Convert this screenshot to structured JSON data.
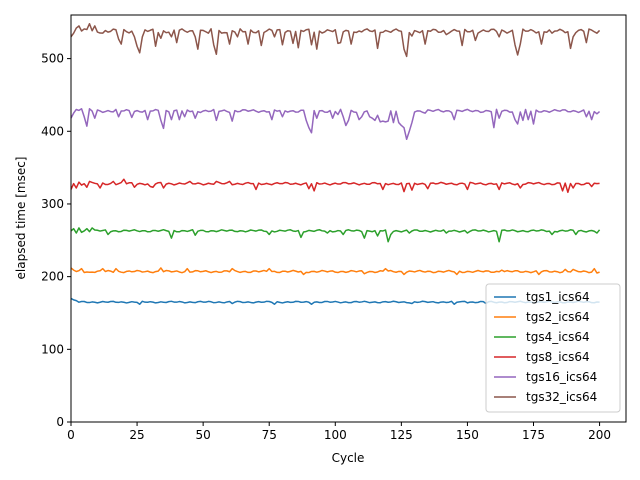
{
  "chart_data": {
    "type": "line",
    "title": "",
    "xlabel": "Cycle",
    "ylabel": "elapsed time [msec]",
    "xlim": [
      0,
      210
    ],
    "ylim": [
      0,
      560
    ],
    "xticks": [
      0,
      25,
      50,
      75,
      100,
      125,
      150,
      175,
      200
    ],
    "yticks": [
      0,
      100,
      200,
      300,
      400,
      500
    ],
    "grid": false,
    "legend_position": "lower-right",
    "x": {
      "start": 0,
      "end": 200,
      "step": 1
    },
    "series": [
      {
        "name": "tgs1_ics64",
        "color": "#1f77b4",
        "baseline": 165,
        "spread": 1.2,
        "events": [
          [
            0,
            170
          ],
          [
            1,
            168
          ],
          [
            2,
            167
          ],
          [
            26,
            162
          ],
          [
            61,
            163
          ],
          [
            77,
            162
          ],
          [
            91,
            162
          ],
          [
            129,
            163
          ],
          [
            145,
            162
          ],
          [
            149,
            166
          ],
          [
            157,
            163
          ]
        ]
      },
      {
        "name": "tgs2_ics64",
        "color": "#ff7f0e",
        "baseline": 207,
        "spread": 1.6,
        "events": [
          [
            0,
            212
          ],
          [
            1,
            209
          ],
          [
            4,
            211
          ],
          [
            7,
            206
          ],
          [
            12,
            211
          ],
          [
            17,
            211
          ],
          [
            34,
            212
          ],
          [
            44,
            211
          ],
          [
            61,
            211
          ],
          [
            75,
            211
          ],
          [
            88,
            203
          ],
          [
            111,
            204
          ],
          [
            119,
            211
          ],
          [
            126,
            203
          ],
          [
            146,
            203
          ],
          [
            163,
            209
          ],
          [
            177,
            203
          ],
          [
            187,
            210
          ],
          [
            190,
            210
          ],
          [
            198,
            211
          ],
          [
            199,
            205
          ]
        ]
      },
      {
        "name": "tgs4_ics64",
        "color": "#2ca02c",
        "baseline": 263,
        "spread": 1.6,
        "events": [
          [
            0,
            263
          ],
          [
            1,
            266
          ],
          [
            2,
            260
          ],
          [
            3,
            267
          ],
          [
            4,
            261
          ],
          [
            6,
            266
          ],
          [
            8,
            267
          ],
          [
            14,
            258
          ],
          [
            38,
            253
          ],
          [
            47,
            257
          ],
          [
            75,
            258
          ],
          [
            87,
            254
          ],
          [
            97,
            260
          ],
          [
            103,
            258
          ],
          [
            111,
            253
          ],
          [
            116,
            256
          ],
          [
            120,
            248
          ],
          [
            121,
            258
          ],
          [
            128,
            260
          ],
          [
            142,
            260
          ],
          [
            150,
            260
          ],
          [
            162,
            248
          ],
          [
            182,
            258
          ],
          [
            191,
            258
          ],
          [
            199,
            260
          ]
        ]
      },
      {
        "name": "tgs8_ics64",
        "color": "#d62728",
        "baseline": 328,
        "spread": 1.8,
        "events": [
          [
            0,
            320
          ],
          [
            1,
            328
          ],
          [
            2,
            322
          ],
          [
            3,
            330
          ],
          [
            4,
            326
          ],
          [
            6,
            323
          ],
          [
            7,
            331
          ],
          [
            11,
            322
          ],
          [
            16,
            331
          ],
          [
            20,
            334
          ],
          [
            24,
            323
          ],
          [
            30,
            324
          ],
          [
            31,
            323
          ],
          [
            35,
            322
          ],
          [
            45,
            331
          ],
          [
            55,
            331
          ],
          [
            60,
            331
          ],
          [
            70,
            320
          ],
          [
            90,
            321
          ],
          [
            92,
            318
          ],
          [
            118,
            320
          ],
          [
            126,
            317
          ],
          [
            129,
            319
          ],
          [
            135,
            321
          ],
          [
            150,
            320
          ],
          [
            162,
            320
          ],
          [
            170,
            322
          ],
          [
            186,
            318
          ],
          [
            188,
            316
          ],
          [
            190,
            322
          ],
          [
            197,
            324
          ],
          [
            199,
            328
          ]
        ]
      },
      {
        "name": "tgs16_ics64",
        "color": "#9467bd",
        "baseline": 428,
        "spread": 2.2,
        "events": [
          [
            0,
            418
          ],
          [
            1,
            425
          ],
          [
            2,
            430
          ],
          [
            4,
            431
          ],
          [
            5,
            420
          ],
          [
            6,
            407
          ],
          [
            7,
            431
          ],
          [
            9,
            418
          ],
          [
            17,
            430
          ],
          [
            18,
            420
          ],
          [
            23,
            419
          ],
          [
            29,
            416
          ],
          [
            34,
            415
          ],
          [
            35,
            404
          ],
          [
            38,
            416
          ],
          [
            41,
            416
          ],
          [
            43,
            420
          ],
          [
            47,
            418
          ],
          [
            55,
            415
          ],
          [
            61,
            414
          ],
          [
            76,
            416
          ],
          [
            80,
            420
          ],
          [
            89,
            415
          ],
          [
            90,
            405
          ],
          [
            91,
            398
          ],
          [
            93,
            418
          ],
          [
            99,
            418
          ],
          [
            101,
            423
          ],
          [
            103,
            420
          ],
          [
            104,
            408
          ],
          [
            105,
            415
          ],
          [
            109,
            416
          ],
          [
            110,
            420
          ],
          [
            113,
            420
          ],
          [
            114,
            418
          ],
          [
            115,
            415
          ],
          [
            116,
            422
          ],
          [
            117,
            413
          ],
          [
            118,
            414
          ],
          [
            119,
            413
          ],
          [
            120,
            414
          ],
          [
            122,
            412
          ],
          [
            124,
            412
          ],
          [
            125,
            408
          ],
          [
            126,
            405
          ],
          [
            127,
            389
          ],
          [
            128,
            400
          ],
          [
            129,
            412
          ],
          [
            134,
            425
          ],
          [
            145,
            416
          ],
          [
            159,
            427
          ],
          [
            160,
            405
          ],
          [
            162,
            418
          ],
          [
            168,
            416
          ],
          [
            169,
            410
          ],
          [
            171,
            415
          ],
          [
            173,
            416
          ],
          [
            175,
            410
          ],
          [
            195,
            420
          ],
          [
            197,
            416
          ],
          [
            198,
            427
          ],
          [
            199,
            424
          ]
        ]
      },
      {
        "name": "tgs32_ics64",
        "color": "#8c564b",
        "baseline": 538,
        "spread": 3,
        "events": [
          [
            0,
            530
          ],
          [
            1,
            535
          ],
          [
            2,
            542
          ],
          [
            3,
            545
          ],
          [
            6,
            540
          ],
          [
            7,
            548
          ],
          [
            9,
            545
          ],
          [
            12,
            535
          ],
          [
            18,
            527
          ],
          [
            19,
            520
          ],
          [
            24,
            530
          ],
          [
            25,
            517
          ],
          [
            26,
            508
          ],
          [
            27,
            530
          ],
          [
            32,
            517
          ],
          [
            34,
            528
          ],
          [
            38,
            530
          ],
          [
            40,
            522
          ],
          [
            47,
            530
          ],
          [
            48,
            513
          ],
          [
            52,
            535
          ],
          [
            54,
            519
          ],
          [
            55,
            506
          ],
          [
            57,
            535
          ],
          [
            60,
            520
          ],
          [
            63,
            530
          ],
          [
            65,
            537
          ],
          [
            67,
            520
          ],
          [
            72,
            518
          ],
          [
            77,
            530
          ],
          [
            80,
            519
          ],
          [
            84,
            521
          ],
          [
            86,
            515
          ],
          [
            91,
            519
          ],
          [
            93,
            513
          ],
          [
            101,
            521
          ],
          [
            102,
            522
          ],
          [
            106,
            520
          ],
          [
            108,
            536
          ],
          [
            116,
            514
          ],
          [
            117,
            536
          ],
          [
            126,
            513
          ],
          [
            127,
            503
          ],
          [
            129,
            531
          ],
          [
            134,
            520
          ],
          [
            142,
            533
          ],
          [
            148,
            518
          ],
          [
            153,
            525
          ],
          [
            162,
            530
          ],
          [
            168,
            519
          ],
          [
            169,
            505
          ],
          [
            170,
            520
          ],
          [
            178,
            520
          ],
          [
            182,
            535
          ],
          [
            189,
            514
          ],
          [
            190,
            530
          ],
          [
            195,
            522
          ],
          [
            198,
            537
          ],
          [
            199,
            535
          ]
        ]
      }
    ]
  }
}
